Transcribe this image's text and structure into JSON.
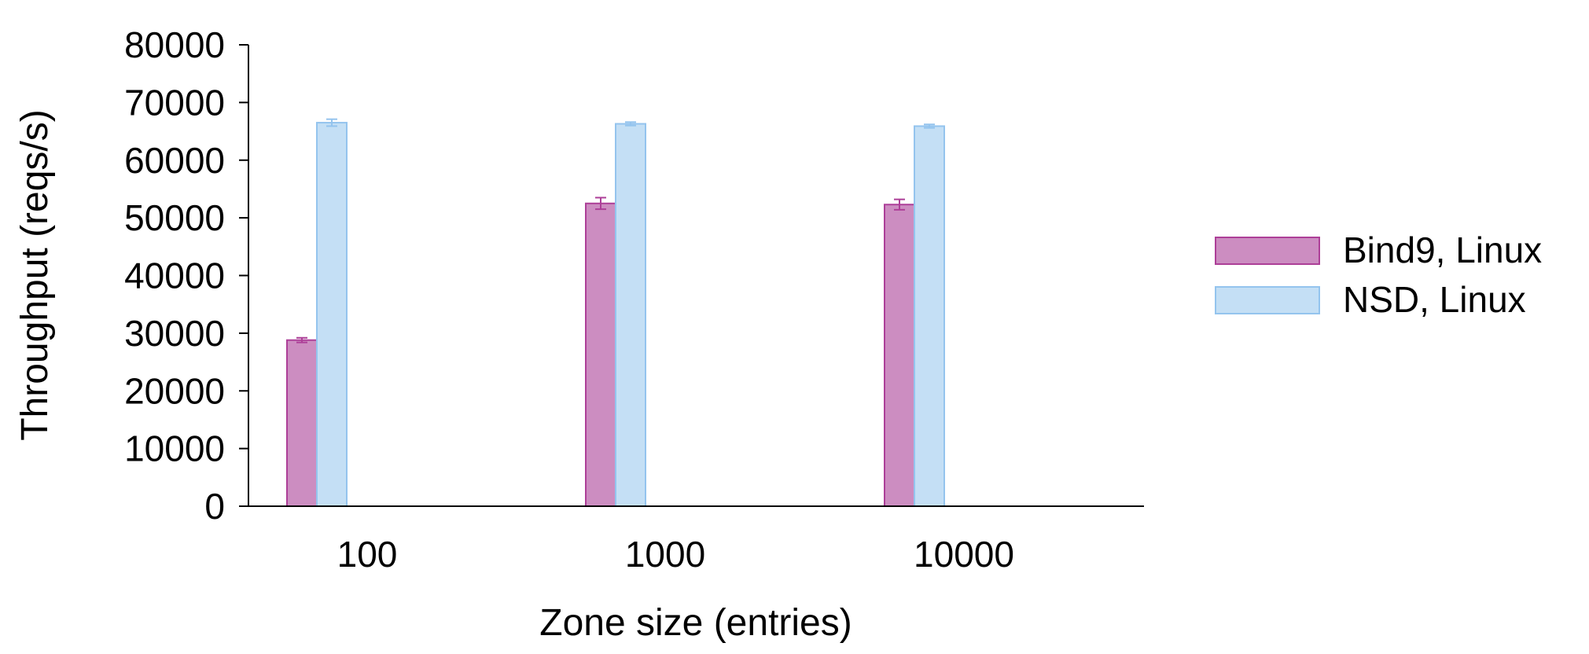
{
  "chart_data": {
    "type": "bar",
    "xlabel": "Zone size (entries)",
    "ylabel": "Throughput (reqs/s)",
    "categories": [
      "100",
      "1000",
      "10000"
    ],
    "ylim": [
      0,
      80000
    ],
    "yticks": [
      "0",
      "10000",
      "20000",
      "30000",
      "40000",
      "50000",
      "60000",
      "70000",
      "80000"
    ],
    "grid": false,
    "legend_position": "right",
    "series": [
      {
        "name": "Bind9, Linux",
        "values": [
          28800,
          52500,
          52300
        ],
        "errors": [
          400,
          1000,
          900
        ],
        "color": "#cc8dc1",
        "edge_color": "#ad3f98"
      },
      {
        "name": "NSD, Linux",
        "values": [
          66500,
          66300,
          65900
        ],
        "errors": [
          600,
          300,
          300
        ],
        "color": "#c4dff5",
        "edge_color": "#94c4ee"
      }
    ]
  }
}
